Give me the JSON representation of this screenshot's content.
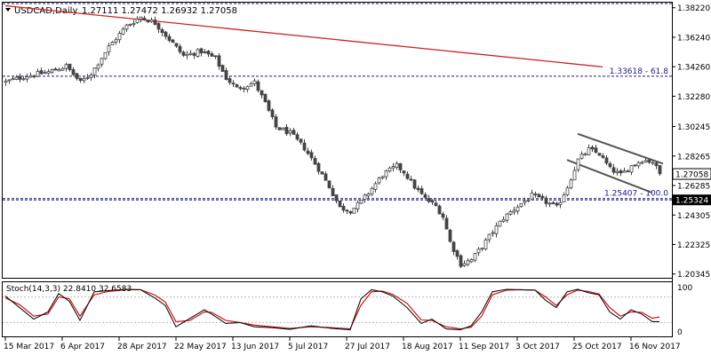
{
  "header": {
    "symbol": "USDCAD,Daily",
    "ohlc": "1.27111 1.27472 1.26932 1.27058"
  },
  "indicator": {
    "title": "Stoch(14,3,3) 22.8410 32.6583",
    "levels": [
      "100",
      "0"
    ]
  },
  "chart_data": {
    "type": "candlestick",
    "price_ticks": [
      "1.38220",
      "1.36240",
      "1.34260",
      "1.32280",
      "1.30245",
      "1.28265",
      "1.26285",
      "1.24305",
      "1.22325",
      "1.20345"
    ],
    "ylim": [
      1.2015,
      1.385
    ],
    "current_price": "1.27058",
    "date_ticks": [
      "15 Mar 2017",
      "6 Apr 2017",
      "28 Apr 2017",
      "22 May 2017",
      "13 Jun 2017",
      "5 Jul 2017",
      "27 Jul 2017",
      "18 Aug 2017",
      "11 Sep 2017",
      "3 Oct 2017",
      "25 Oct 2017",
      "16 Nov 2017"
    ],
    "fib_levels": [
      {
        "label": "1.33618 - 61.8",
        "value": 1.3362,
        "badge": false
      },
      {
        "label": "1.25407 - 100.0",
        "value": 1.2541,
        "badge": false
      },
      {
        "label": "1.25324",
        "value": 1.2532,
        "badge": true
      }
    ],
    "top_line_value": 1.385,
    "trendline": {
      "from": [
        0,
        1.3835
      ],
      "to": [
        168,
        1.3425
      ]
    },
    "channel": {
      "upper": {
        "from": [
          161,
          1.2975
        ],
        "to": [
          185,
          1.2775
        ]
      },
      "lower": {
        "from": [
          158,
          1.28
        ],
        "to": [
          182,
          1.258
        ]
      }
    },
    "price_path": [
      [
        0,
        1.3325
      ],
      [
        6,
        1.3365
      ],
      [
        12,
        1.339
      ],
      [
        17,
        1.343
      ],
      [
        21,
        1.332
      ],
      [
        24,
        1.338
      ],
      [
        29,
        1.356
      ],
      [
        34,
        1.37
      ],
      [
        38,
        1.376
      ],
      [
        42,
        1.372
      ],
      [
        46,
        1.361
      ],
      [
        50,
        1.35
      ],
      [
        55,
        1.353
      ],
      [
        59,
        1.348
      ],
      [
        62,
        1.335
      ],
      [
        65,
        1.328
      ],
      [
        70,
        1.332
      ],
      [
        73,
        1.318
      ],
      [
        76,
        1.302
      ],
      [
        80,
        1.298
      ],
      [
        84,
        1.288
      ],
      [
        88,
        1.274
      ],
      [
        91,
        1.262
      ],
      [
        94,
        1.248
      ],
      [
        97,
        1.246
      ],
      [
        100,
        1.252
      ],
      [
        103,
        1.261
      ],
      [
        106,
        1.27
      ],
      [
        110,
        1.276
      ],
      [
        112,
        1.272
      ],
      [
        115,
        1.262
      ],
      [
        118,
        1.254
      ],
      [
        121,
        1.249
      ],
      [
        123,
        1.242
      ],
      [
        125,
        1.225
      ],
      [
        128,
        1.21
      ],
      [
        131,
        1.213
      ],
      [
        134,
        1.222
      ],
      [
        137,
        1.232
      ],
      [
        140,
        1.241
      ],
      [
        144,
        1.249
      ],
      [
        148,
        1.256
      ],
      [
        151,
        1.253
      ],
      [
        155,
        1.248
      ],
      [
        158,
        1.262
      ],
      [
        161,
        1.28
      ],
      [
        164,
        1.287
      ],
      [
        167,
        1.284
      ],
      [
        170,
        1.274
      ],
      [
        173,
        1.27
      ],
      [
        176,
        1.276
      ],
      [
        179,
        1.28
      ],
      [
        182,
        1.279
      ],
      [
        184,
        1.2706
      ]
    ],
    "stoch_k_path": [
      [
        0,
        82
      ],
      [
        4,
        55
      ],
      [
        8,
        28
      ],
      [
        12,
        45
      ],
      [
        15,
        88
      ],
      [
        18,
        70
      ],
      [
        21,
        25
      ],
      [
        25,
        92
      ],
      [
        29,
        95
      ],
      [
        34,
        98
      ],
      [
        38,
        97
      ],
      [
        42,
        78
      ],
      [
        45,
        60
      ],
      [
        48,
        10
      ],
      [
        52,
        30
      ],
      [
        56,
        50
      ],
      [
        58,
        40
      ],
      [
        62,
        18
      ],
      [
        66,
        20
      ],
      [
        70,
        10
      ],
      [
        75,
        8
      ],
      [
        80,
        4
      ],
      [
        86,
        12
      ],
      [
        92,
        6
      ],
      [
        97,
        3
      ],
      [
        100,
        75
      ],
      [
        103,
        97
      ],
      [
        106,
        92
      ],
      [
        109,
        82
      ],
      [
        113,
        55
      ],
      [
        117,
        18
      ],
      [
        120,
        28
      ],
      [
        124,
        5
      ],
      [
        128,
        3
      ],
      [
        131,
        12
      ],
      [
        134,
        45
      ],
      [
        137,
        92
      ],
      [
        141,
        98
      ],
      [
        145,
        97
      ],
      [
        149,
        96
      ],
      [
        152,
        72
      ],
      [
        155,
        55
      ],
      [
        158,
        92
      ],
      [
        161,
        98
      ],
      [
        164,
        90
      ],
      [
        167,
        85
      ],
      [
        170,
        45
      ],
      [
        173,
        28
      ],
      [
        176,
        50
      ],
      [
        179,
        40
      ],
      [
        182,
        22
      ],
      [
        184,
        22
      ]
    ],
    "stoch_d_path": [
      [
        0,
        78
      ],
      [
        4,
        62
      ],
      [
        8,
        35
      ],
      [
        12,
        40
      ],
      [
        15,
        80
      ],
      [
        18,
        76
      ],
      [
        21,
        35
      ],
      [
        25,
        85
      ],
      [
        29,
        93
      ],
      [
        34,
        97
      ],
      [
        38,
        97
      ],
      [
        42,
        85
      ],
      [
        45,
        68
      ],
      [
        48,
        22
      ],
      [
        52,
        25
      ],
      [
        56,
        45
      ],
      [
        58,
        44
      ],
      [
        62,
        25
      ],
      [
        66,
        20
      ],
      [
        70,
        14
      ],
      [
        75,
        10
      ],
      [
        80,
        6
      ],
      [
        86,
        10
      ],
      [
        92,
        8
      ],
      [
        97,
        5
      ],
      [
        100,
        60
      ],
      [
        103,
        92
      ],
      [
        106,
        94
      ],
      [
        109,
        86
      ],
      [
        113,
        65
      ],
      [
        117,
        26
      ],
      [
        120,
        25
      ],
      [
        124,
        10
      ],
      [
        128,
        5
      ],
      [
        131,
        9
      ],
      [
        134,
        35
      ],
      [
        137,
        85
      ],
      [
        141,
        96
      ],
      [
        145,
        97
      ],
      [
        149,
        96
      ],
      [
        152,
        80
      ],
      [
        155,
        60
      ],
      [
        158,
        85
      ],
      [
        161,
        96
      ],
      [
        164,
        93
      ],
      [
        167,
        87
      ],
      [
        170,
        55
      ],
      [
        173,
        35
      ],
      [
        176,
        45
      ],
      [
        179,
        44
      ],
      [
        182,
        30
      ],
      [
        184,
        33
      ]
    ],
    "colors": {
      "candle": "#444444",
      "trendline": "#cc2222",
      "fib": "#1a1a8c",
      "stoch_k": "#111111",
      "stoch_d": "#cc0000",
      "channel": "#555555"
    }
  }
}
